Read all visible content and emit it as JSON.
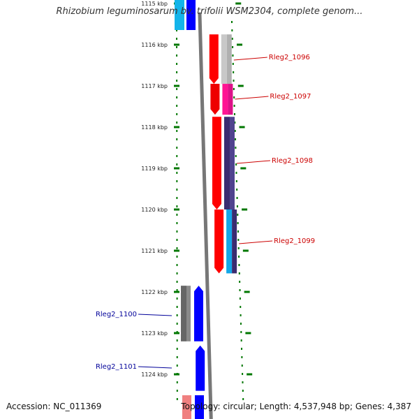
{
  "title": "Rhizobium leguminosarum bv. trifolii WSM2304, complete genom...",
  "footer": {
    "accession": "Accession: NC_011369",
    "stats": "Topology: circular; Length: 4,537,948 bp; Genes: 4,387"
  },
  "colors": {
    "tick": "#007700",
    "top_label": "#cc0000",
    "bottom_label": "#000099",
    "backbone": "#777777",
    "red": "#ff0000",
    "blue": "#0000ff"
  },
  "axis": {
    "unit": "kbp",
    "ticks": [
      {
        "value": 1115,
        "label": "1115 kbp"
      },
      {
        "value": 1116,
        "label": "1116 kbp"
      },
      {
        "value": 1117,
        "label": "1117 kbp"
      },
      {
        "value": 1118,
        "label": "1118 kbp"
      },
      {
        "value": 1119,
        "label": "1119 kbp"
      },
      {
        "value": 1120,
        "label": "1120 kbp"
      },
      {
        "value": 1121,
        "label": "1121 kbp"
      },
      {
        "value": 1122,
        "label": "1122 kbp"
      },
      {
        "value": 1123,
        "label": "1123 kbp"
      },
      {
        "value": 1124,
        "label": "1124 kbp"
      }
    ]
  },
  "genes": [
    {
      "name": "Rleg2_1096",
      "strand": "top",
      "start": 1115.75,
      "end": 1116.95,
      "color": "#ff0000",
      "track_colors": [
        "#c8c8c8",
        "#b0b0b0"
      ]
    },
    {
      "name": "Rleg2_1097",
      "strand": "top",
      "start": 1116.95,
      "end": 1117.7,
      "color": "#ee0000",
      "track_colors": [
        "#ff1493",
        "#dd1188"
      ]
    },
    {
      "name": "Rleg2_1098",
      "strand": "top",
      "start": 1117.75,
      "end": 1120.0,
      "color": "#ff0000",
      "track_colors": [
        "#3a2c70",
        "#50438f"
      ]
    },
    {
      "name": "Rleg2_1099",
      "strand": "top",
      "start": 1120.0,
      "end": 1121.55,
      "color": "#ff0000",
      "track_colors": [
        "#13a7e8",
        "#3a2c70"
      ]
    },
    {
      "name": "Rleg2_1100",
      "strand": "bottom",
      "start": 1121.85,
      "end": 1123.2,
      "color": "#0000ff",
      "track_colors": [
        "#666666",
        "#8a8a8a"
      ]
    },
    {
      "name": "Rleg2_1101",
      "strand": "bottom",
      "start": 1123.3,
      "end": 1124.4,
      "color": "#0000ff",
      "track_colors": []
    }
  ],
  "partial_genes": [
    {
      "position": "top",
      "colors": [
        "#13b4ea",
        "#0000ff"
      ]
    },
    {
      "position": "bottom",
      "colors": [
        "#f08080",
        "#0000ff"
      ]
    }
  ]
}
